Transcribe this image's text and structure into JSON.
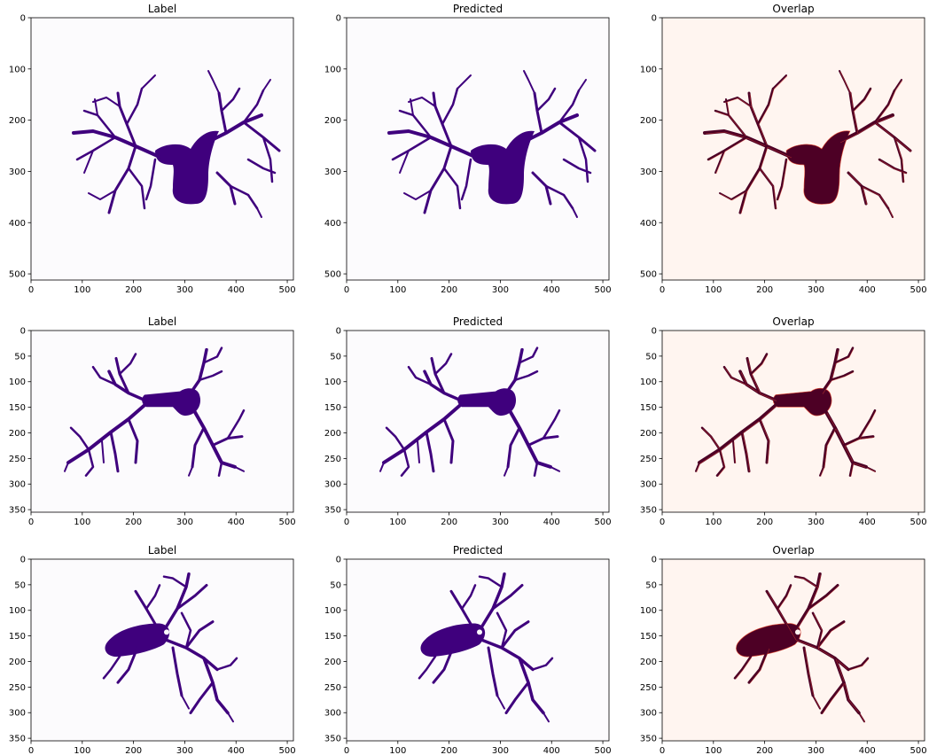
{
  "figure": {
    "panels": [
      {
        "title": "Label",
        "style": "label",
        "row": 0,
        "xticks": [
          0,
          100,
          200,
          300,
          400,
          500
        ],
        "yticks": [
          0,
          100,
          200,
          300,
          400,
          500
        ],
        "ymax": 512,
        "tree": "A"
      },
      {
        "title": "Predicted",
        "style": "pred",
        "row": 0,
        "xticks": [
          0,
          100,
          200,
          300,
          400,
          500
        ],
        "yticks": [
          0,
          100,
          200,
          300,
          400,
          500
        ],
        "ymax": 512,
        "tree": "A"
      },
      {
        "title": "Overlap",
        "style": "overlap",
        "row": 0,
        "xticks": [
          0,
          100,
          200,
          300,
          400,
          500
        ],
        "yticks": [
          0,
          100,
          200,
          300,
          400,
          500
        ],
        "ymax": 512,
        "tree": "A"
      },
      {
        "title": "Label",
        "style": "label",
        "row": 1,
        "xticks": [
          0,
          100,
          200,
          300,
          400,
          500
        ],
        "yticks": [
          0,
          50,
          100,
          150,
          200,
          250,
          300,
          350
        ],
        "ymax": 355,
        "tree": "B"
      },
      {
        "title": "Predicted",
        "style": "pred",
        "row": 1,
        "xticks": [
          0,
          100,
          200,
          300,
          400,
          500
        ],
        "yticks": [
          0,
          50,
          100,
          150,
          200,
          250,
          300,
          350
        ],
        "ymax": 355,
        "tree": "B"
      },
      {
        "title": "Overlap",
        "style": "overlap",
        "row": 1,
        "xticks": [
          0,
          100,
          200,
          300,
          400,
          500
        ],
        "yticks": [
          0,
          50,
          100,
          150,
          200,
          250,
          300,
          350
        ],
        "ymax": 355,
        "tree": "B"
      },
      {
        "title": "Label",
        "style": "label",
        "row": 2,
        "xticks": [
          0,
          100,
          200,
          300,
          400,
          500
        ],
        "yticks": [
          0,
          50,
          100,
          150,
          200,
          250,
          300,
          350
        ],
        "ymax": 355,
        "tree": "C"
      },
      {
        "title": "Predicted",
        "style": "pred",
        "row": 2,
        "xticks": [
          0,
          100,
          200,
          300,
          400,
          500
        ],
        "yticks": [
          0,
          50,
          100,
          150,
          200,
          250,
          300,
          350
        ],
        "ymax": 355,
        "tree": "C"
      },
      {
        "title": "Overlap",
        "style": "overlap",
        "row": 2,
        "xticks": [
          0,
          100,
          200,
          300,
          400,
          500
        ],
        "yticks": [
          0,
          50,
          100,
          150,
          200,
          250,
          300,
          350
        ],
        "ymax": 355,
        "tree": "C"
      }
    ],
    "colors": {
      "label_bg": "#fcfbfd",
      "label_fg": "#3f007d",
      "pred_bg": "#fcfbfd",
      "pred_fg": "#3f007d",
      "overlap_bg": "#fff5f0",
      "overlap_fg": "#4d0025",
      "overlap_edge": "#e34a33"
    }
  }
}
